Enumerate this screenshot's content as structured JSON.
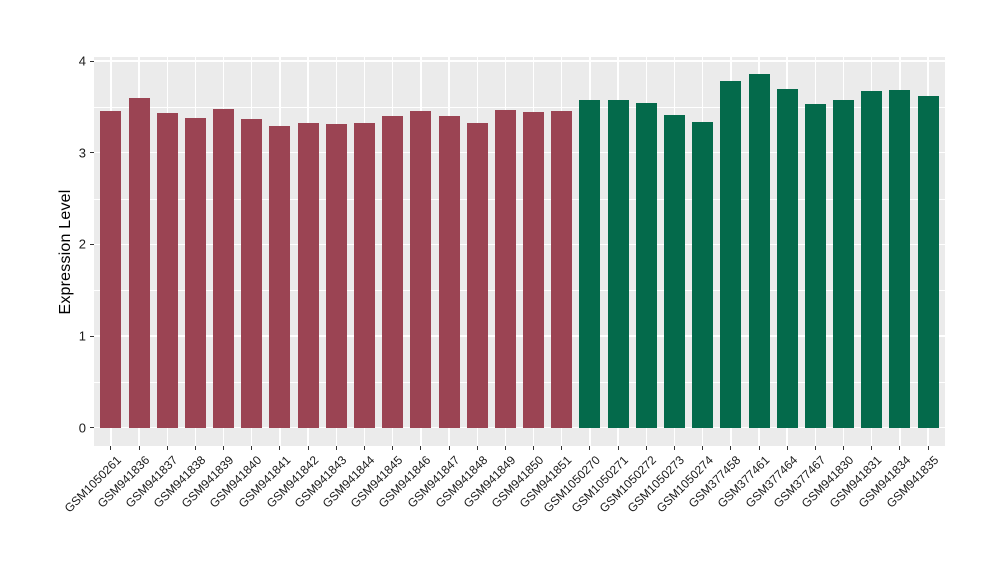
{
  "chart_data": {
    "type": "bar",
    "title": "",
    "xlabel": "",
    "ylabel": "Expression Level",
    "ylim": [
      0,
      4
    ],
    "yticks": [
      0,
      1,
      2,
      3,
      4
    ],
    "grid": "major+minor horizontal, major vertical per category",
    "legend": "none",
    "panel_background": "#EBEBEB",
    "gridline_color": "#FFFFFF",
    "colors": [
      "#9B4453",
      "#046A4B"
    ],
    "color_groups": [
      17,
      13
    ],
    "categories": [
      "GSM1050261",
      "GSM941836",
      "GSM941837",
      "GSM941838",
      "GSM941839",
      "GSM941840",
      "GSM941841",
      "GSM941842",
      "GSM941843",
      "GSM941844",
      "GSM941845",
      "GSM941846",
      "GSM941847",
      "GSM941848",
      "GSM941849",
      "GSM941850",
      "GSM941851",
      "GSM1050270",
      "GSM1050271",
      "GSM1050272",
      "GSM1050273",
      "GSM1050274",
      "GSM377458",
      "GSM377461",
      "GSM377464",
      "GSM377467",
      "GSM941830",
      "GSM941831",
      "GSM941834",
      "GSM941835"
    ],
    "values": [
      3.45,
      3.6,
      3.43,
      3.38,
      3.48,
      3.37,
      3.29,
      3.32,
      3.31,
      3.32,
      3.4,
      3.46,
      3.4,
      3.32,
      3.47,
      3.44,
      3.46,
      3.57,
      3.58,
      3.54,
      3.41,
      3.34,
      3.78,
      3.86,
      3.7,
      3.53,
      3.58,
      3.67,
      3.68,
      3.62
    ]
  }
}
